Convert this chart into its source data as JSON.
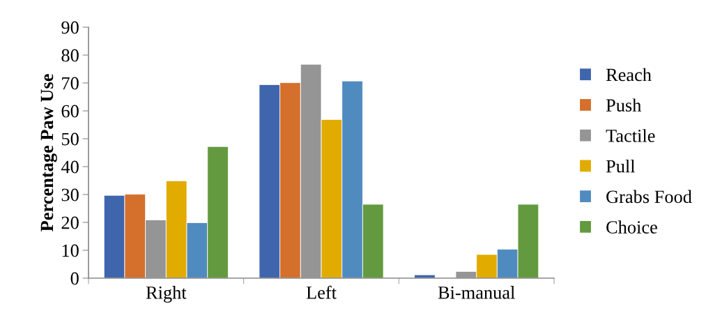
{
  "chart_data": {
    "type": "bar",
    "ylabel": "Percentage Paw Use",
    "categories": [
      "Right",
      "Left",
      "Bi-manual"
    ],
    "series": [
      {
        "name": "Reach",
        "color": "#3f65ad",
        "values": [
          29.7,
          69.4,
          1.2
        ]
      },
      {
        "name": "Push",
        "color": "#d46f2c",
        "values": [
          30.1,
          70.1,
          null
        ]
      },
      {
        "name": "Tactile",
        "color": "#959595",
        "values": [
          20.9,
          76.7,
          2.4
        ]
      },
      {
        "name": "Pull",
        "color": "#e2ab00",
        "values": [
          34.9,
          56.9,
          8.5
        ]
      },
      {
        "name": "Grabs Food",
        "color": "#508bbf",
        "values": [
          19.9,
          70.7,
          10.4
        ]
      },
      {
        "name": "Choice",
        "color": "#639a3f",
        "values": [
          47.2,
          26.5,
          26.5
        ]
      }
    ],
    "ylim": [
      0,
      90
    ],
    "yticks": [
      0,
      10,
      20,
      30,
      40,
      50,
      60,
      70,
      80,
      90
    ],
    "grid": false,
    "legend": "right"
  }
}
